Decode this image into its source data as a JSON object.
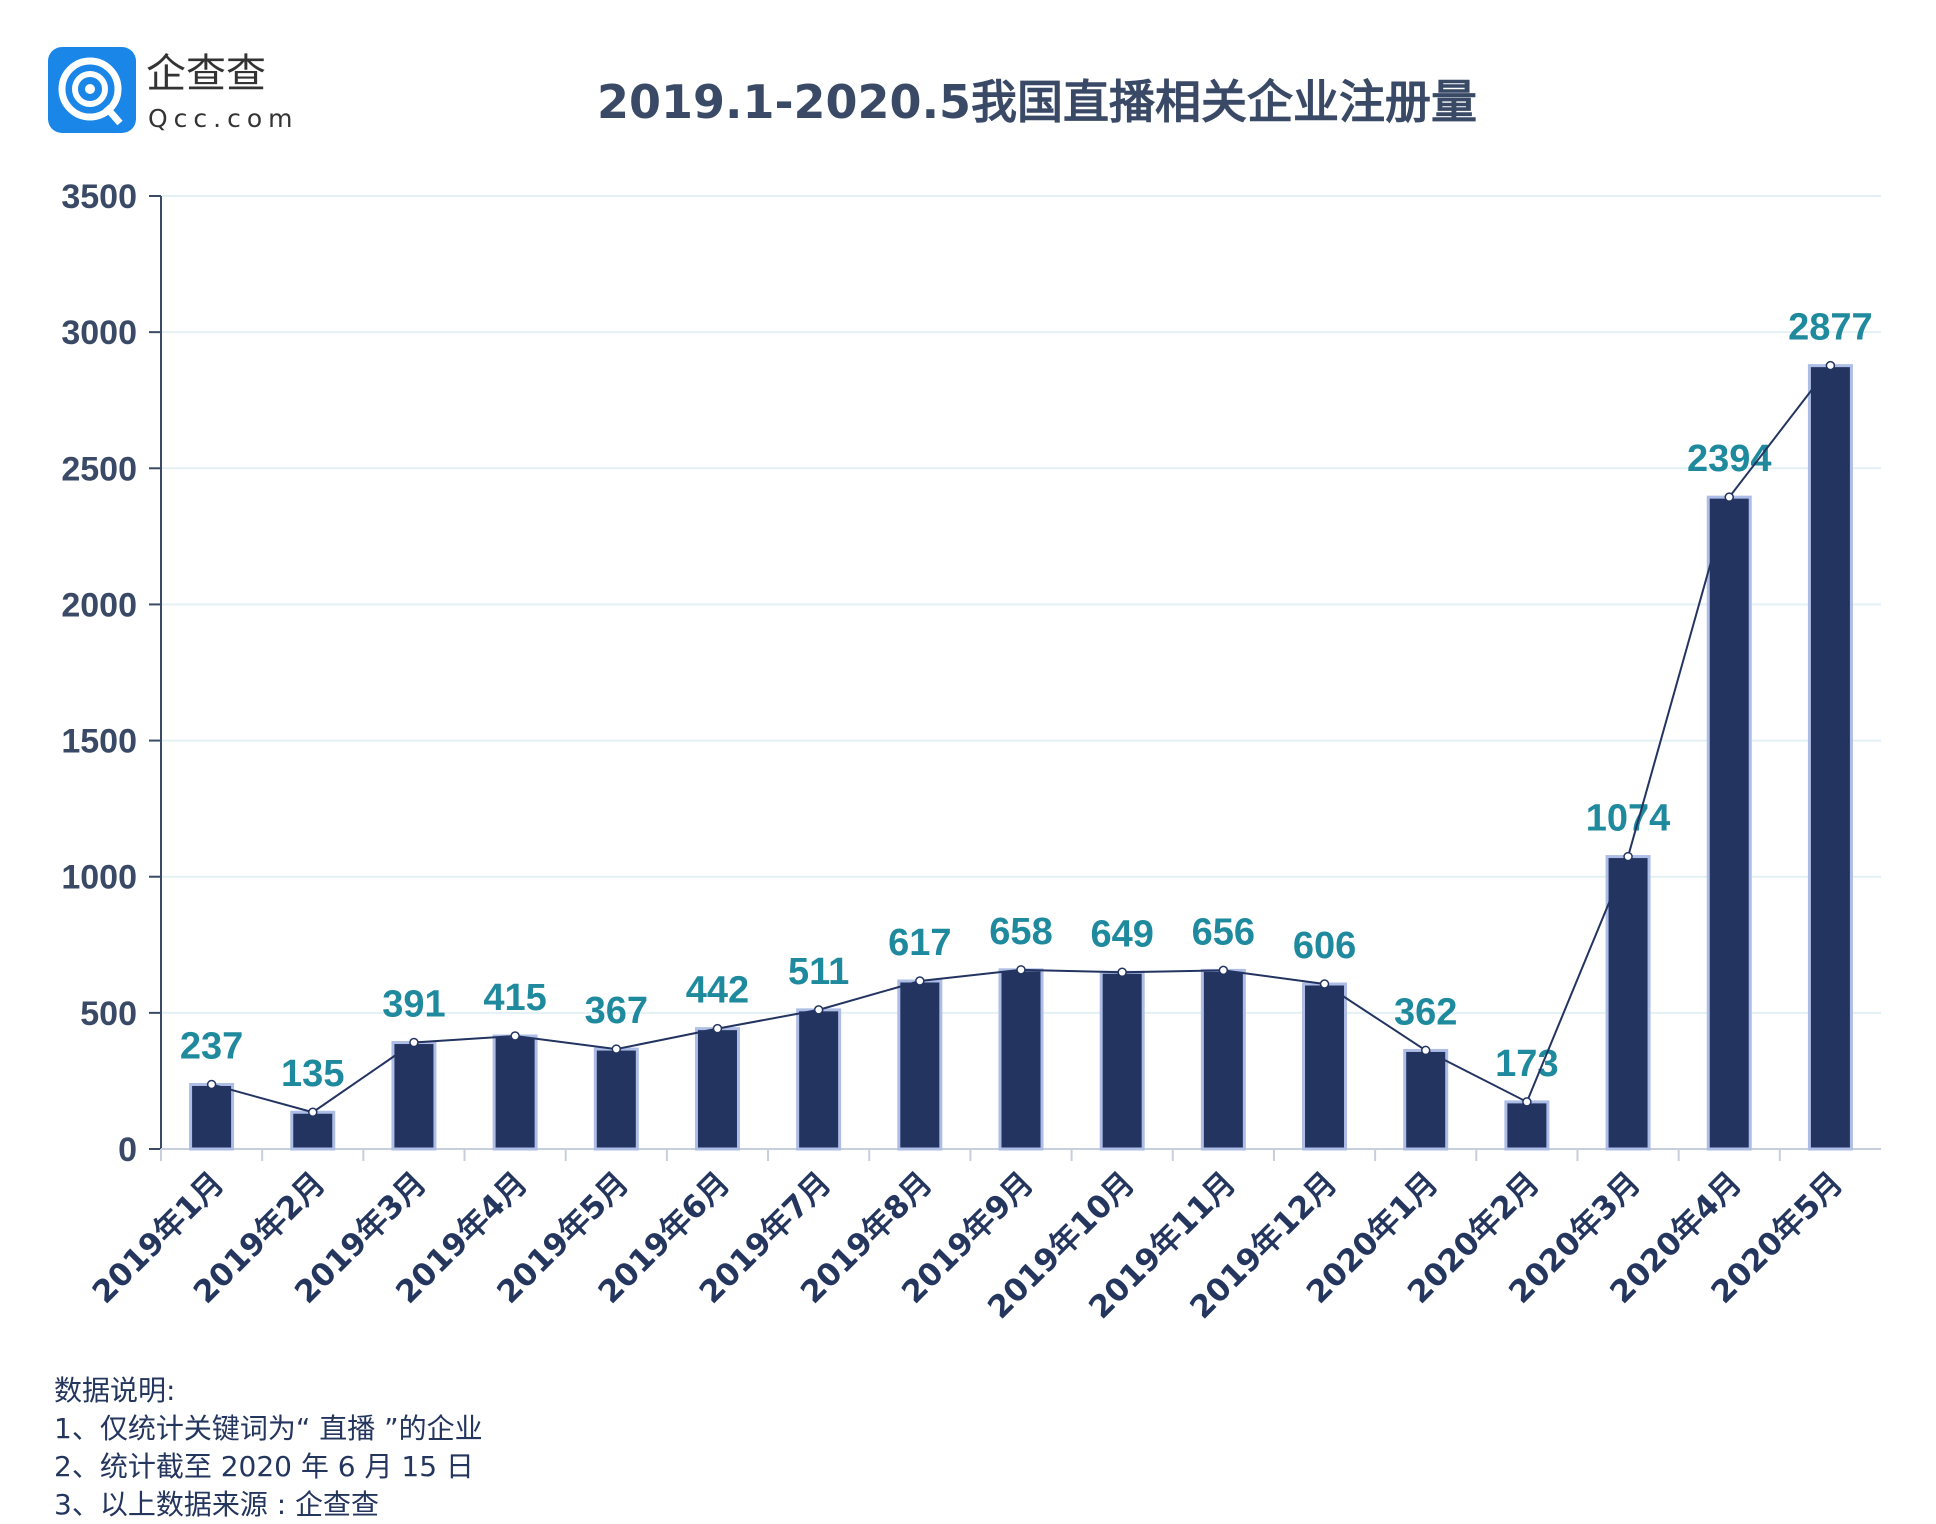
{
  "logo": {
    "brand": "企查查",
    "domain": "Qcc.com",
    "color": "#1a86e8"
  },
  "chart_data": {
    "type": "bar",
    "title": "2019.1-2020.5我国直播相关企业注册量",
    "categories": [
      "2019年1月",
      "2019年2月",
      "2019年3月",
      "2019年4月",
      "2019年5月",
      "2019年6月",
      "2019年7月",
      "2019年8月",
      "2019年9月",
      "2019年10月",
      "2019年11月",
      "2019年12月",
      "2020年1月",
      "2020年2月",
      "2020年3月",
      "2020年4月",
      "2020年5月"
    ],
    "values": [
      237,
      135,
      391,
      415,
      367,
      442,
      511,
      617,
      658,
      649,
      656,
      606,
      362,
      173,
      1074,
      2394,
      2877
    ],
    "overlay_line": true,
    "ylim": [
      0,
      3500
    ],
    "yticks": [
      0,
      500,
      1000,
      1500,
      2000,
      2500,
      3000,
      3500
    ],
    "grid": true,
    "colors": {
      "bar": "#233461",
      "bar_border": "#aebde6",
      "label": "#1f8a9e",
      "line": "#233461",
      "axis_text": "#3a4a66",
      "grid": "#e3f1f4"
    }
  },
  "notes": {
    "heading": "数据说明:",
    "lines": [
      "1、仅统计关键词为“ 直播 ”的企业",
      "2、统计截至 2020 年 6 月 15 日",
      "3、以上数据来源 : 企查查"
    ]
  }
}
